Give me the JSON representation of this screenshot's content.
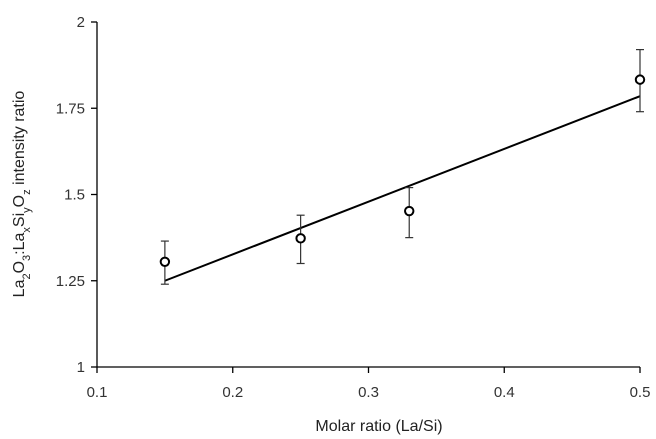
{
  "chart_data": {
    "type": "scatter",
    "x_label": "Molar ratio (La/Si)",
    "y_label": {
      "parts": [
        {
          "text": "La",
          "shift": "normal"
        },
        {
          "text": "2",
          "shift": "sub"
        },
        {
          "text": "O",
          "shift": "normal"
        },
        {
          "text": "3",
          "shift": "sub"
        },
        {
          "text": ":La",
          "shift": "normal"
        },
        {
          "text": "x",
          "shift": "sub"
        },
        {
          "text": "Si",
          "shift": "normal"
        },
        {
          "text": "y",
          "shift": "sub"
        },
        {
          "text": "O",
          "shift": "normal"
        },
        {
          "text": "z",
          "shift": "sub"
        },
        {
          "text": " intensity ratio",
          "shift": "normal"
        }
      ]
    },
    "x_range": [
      0.1,
      0.5
    ],
    "y_range": [
      1,
      2
    ],
    "x_ticks": [
      {
        "value": 0.1,
        "label": "0.1"
      },
      {
        "value": 0.2,
        "label": "0.2"
      },
      {
        "value": 0.3,
        "label": "0.3"
      },
      {
        "value": 0.4,
        "label": "0.4"
      },
      {
        "value": 0.5,
        "label": "0.5"
      }
    ],
    "y_ticks": [
      {
        "value": 1,
        "label": "1"
      },
      {
        "value": 1.25,
        "label": "1.25"
      },
      {
        "value": 1.5,
        "label": "1.5"
      },
      {
        "value": 1.75,
        "label": "1.75"
      },
      {
        "value": 2,
        "label": "2"
      }
    ],
    "grid": false,
    "legend": "none",
    "points": [
      {
        "x": 0.15,
        "y": 1.305,
        "err_low": 1.24,
        "err_high": 1.365
      },
      {
        "x": 0.25,
        "y": 1.373,
        "err_low": 1.3,
        "err_high": 1.44
      },
      {
        "x": 0.33,
        "y": 1.452,
        "err_low": 1.375,
        "err_high": 1.52
      },
      {
        "x": 0.5,
        "y": 1.833,
        "err_low": 1.74,
        "err_high": 1.92
      }
    ],
    "trendline": {
      "x": [
        0.15,
        0.5
      ],
      "y": [
        1.25,
        1.785
      ]
    }
  }
}
